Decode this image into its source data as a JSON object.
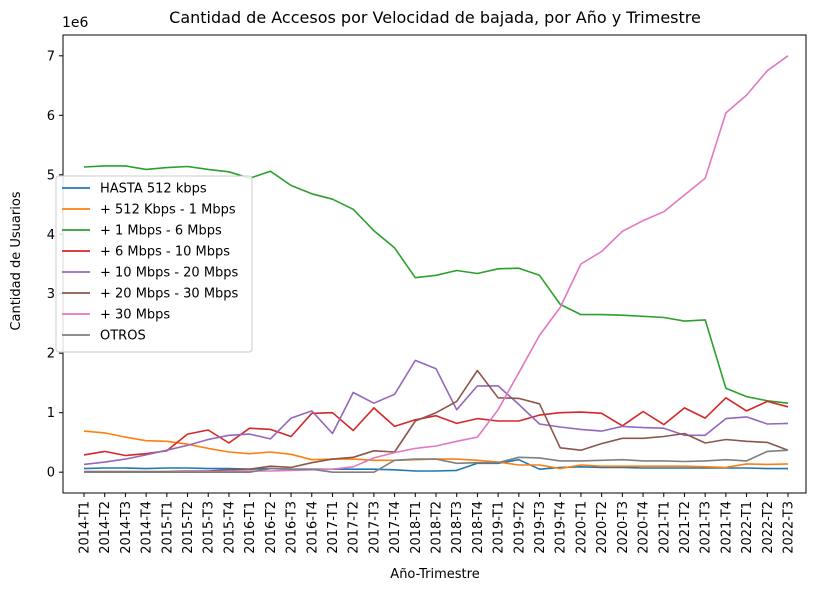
{
  "chart_data": {
    "type": "line",
    "title": "Cantidad de Accesos por Velocidad de bajada, por Año y Trimestre",
    "xlabel": "Año-Trimestre",
    "ylabel": "Cantidad de Usuarios",
    "y_multiplier": "1e6",
    "ylim": [
      -0.35,
      7.35
    ],
    "y_ticks": [
      0,
      1,
      2,
      3,
      4,
      5,
      6,
      7
    ],
    "y_tick_labels": [
      "0",
      "1",
      "2",
      "3",
      "4",
      "5",
      "6",
      "7"
    ],
    "grid": false,
    "legend_position": "center-left",
    "categories": [
      "2014-T1",
      "2014-T2",
      "2014-T3",
      "2014-T4",
      "2015-T1",
      "2015-T2",
      "2015-T3",
      "2015-T4",
      "2016-T1",
      "2016-T2",
      "2016-T3",
      "2016-T4",
      "2017-T1",
      "2017-T2",
      "2017-T3",
      "2017-T4",
      "2018-T1",
      "2018-T2",
      "2018-T3",
      "2018-T4",
      "2019-T1",
      "2019-T2",
      "2019-T3",
      "2019-T4",
      "2020-T1",
      "2020-T2",
      "2020-T3",
      "2020-T4",
      "2021-T1",
      "2021-T2",
      "2021-T3",
      "2021-T4",
      "2022-T1",
      "2022-T2",
      "2022-T3"
    ],
    "series": [
      {
        "name": "HASTA 512 kbps",
        "color": "#1f77b4",
        "values": [
          0.06,
          0.07,
          0.07,
          0.06,
          0.07,
          0.07,
          0.06,
          0.06,
          0.05,
          0.06,
          0.05,
          0.05,
          0.05,
          0.05,
          0.05,
          0.04,
          0.02,
          0.02,
          0.03,
          0.15,
          0.15,
          0.21,
          0.05,
          0.08,
          0.09,
          0.08,
          0.08,
          0.07,
          0.07,
          0.07,
          0.07,
          0.07,
          0.07,
          0.06,
          0.06
        ]
      },
      {
        "name": "+ 512 Kbps - 1 Mbps",
        "color": "#ff7f0e",
        "values": [
          0.69,
          0.66,
          0.59,
          0.53,
          0.52,
          0.47,
          0.4,
          0.34,
          0.31,
          0.34,
          0.3,
          0.21,
          0.22,
          0.22,
          0.2,
          0.2,
          0.21,
          0.22,
          0.22,
          0.2,
          0.17,
          0.12,
          0.12,
          0.06,
          0.12,
          0.1,
          0.1,
          0.1,
          0.1,
          0.1,
          0.09,
          0.08,
          0.14,
          0.13,
          0.14
        ]
      },
      {
        "name": "+ 1 Mbps - 6 Mbps",
        "color": "#2ca02c",
        "values": [
          5.13,
          5.15,
          5.15,
          5.09,
          5.12,
          5.14,
          5.09,
          5.05,
          4.94,
          5.06,
          4.82,
          4.68,
          4.59,
          4.42,
          4.06,
          3.77,
          3.27,
          3.31,
          3.39,
          3.34,
          3.42,
          3.43,
          3.31,
          2.82,
          2.65,
          2.65,
          2.64,
          2.62,
          2.6,
          2.54,
          2.56,
          1.41,
          1.27,
          1.2,
          1.16
        ]
      },
      {
        "name": "+ 6 Mbps - 10 Mbps",
        "color": "#d62728",
        "values": [
          0.29,
          0.35,
          0.28,
          0.31,
          0.36,
          0.64,
          0.71,
          0.49,
          0.74,
          0.72,
          0.6,
          0.99,
          1.0,
          0.7,
          1.08,
          0.77,
          0.88,
          0.95,
          0.82,
          0.9,
          0.86,
          0.86,
          0.96,
          1.0,
          1.01,
          0.99,
          0.78,
          1.02,
          0.8,
          1.08,
          0.91,
          1.25,
          1.03,
          1.19,
          1.1
        ]
      },
      {
        "name": "+ 10 Mbps - 20 Mbps",
        "color": "#9467bd",
        "values": [
          0.13,
          0.17,
          0.22,
          0.29,
          0.37,
          0.45,
          0.55,
          0.62,
          0.64,
          0.56,
          0.91,
          1.03,
          0.65,
          1.34,
          1.16,
          1.31,
          1.88,
          1.74,
          1.05,
          1.45,
          1.45,
          1.14,
          0.81,
          0.76,
          0.72,
          0.69,
          0.77,
          0.75,
          0.74,
          0.62,
          0.62,
          0.9,
          0.93,
          0.81,
          0.82
        ]
      },
      {
        "name": "+ 20 Mbps - 30 Mbps",
        "color": "#8c564b",
        "values": [
          0.01,
          0.01,
          0.01,
          0.01,
          0.01,
          0.02,
          0.02,
          0.04,
          0.05,
          0.1,
          0.08,
          0.16,
          0.22,
          0.25,
          0.36,
          0.34,
          0.86,
          1.0,
          1.19,
          1.71,
          1.25,
          1.24,
          1.15,
          0.41,
          0.37,
          0.48,
          0.57,
          0.57,
          0.6,
          0.65,
          0.49,
          0.55,
          0.52,
          0.5,
          0.37
        ]
      },
      {
        "name": "+ 30 Mbps",
        "color": "#e377c2",
        "values": [
          0.0,
          0.0,
          0.0,
          0.0,
          0.0,
          0.01,
          0.01,
          0.01,
          0.02,
          0.02,
          0.03,
          0.04,
          0.05,
          0.09,
          0.24,
          0.33,
          0.4,
          0.44,
          0.52,
          0.59,
          1.05,
          1.67,
          2.3,
          2.77,
          3.5,
          3.71,
          4.05,
          4.23,
          4.38,
          4.66,
          4.94,
          6.04,
          6.34,
          6.75,
          7.0
        ]
      },
      {
        "name": "OTROS",
        "color": "#7f7f7f",
        "values": [
          0.0,
          0.0,
          0.0,
          0.0,
          0.0,
          0.0,
          0.0,
          0.0,
          0.0,
          0.06,
          0.05,
          0.05,
          0.0,
          0.0,
          0.0,
          0.2,
          0.22,
          0.22,
          0.15,
          0.16,
          0.16,
          0.25,
          0.24,
          0.19,
          0.19,
          0.2,
          0.21,
          0.19,
          0.19,
          0.18,
          0.19,
          0.21,
          0.19,
          0.35,
          0.37
        ]
      }
    ]
  }
}
